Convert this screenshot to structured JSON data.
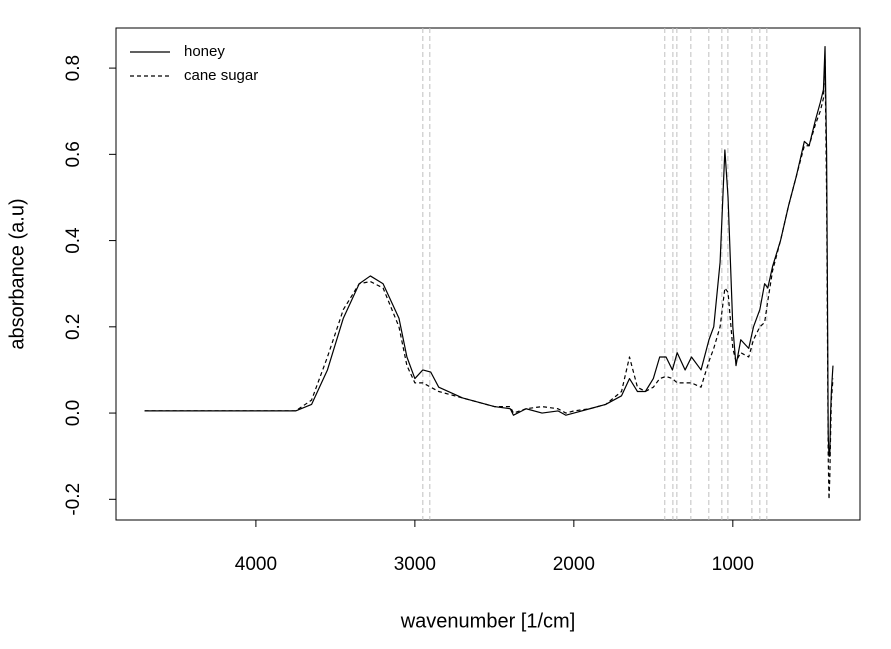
{
  "chart_data": {
    "type": "line",
    "xlabel": "wavenumber [1/cm]",
    "ylabel": "absorbance (a.u)",
    "x": [
      4700,
      3750,
      3650,
      3550,
      3450,
      3350,
      3280,
      3200,
      3100,
      3050,
      3000,
      2950,
      2900,
      2850,
      2700,
      2500,
      2400,
      2380,
      2300,
      2200,
      2100,
      2050,
      2000,
      1900,
      1800,
      1700,
      1650,
      1600,
      1550,
      1500,
      1460,
      1420,
      1380,
      1350,
      1300,
      1260,
      1200,
      1150,
      1120,
      1080,
      1050,
      1030,
      1000,
      980,
      950,
      900,
      870,
      830,
      800,
      780,
      750,
      700,
      650,
      600,
      550,
      520,
      480,
      450,
      430,
      420,
      410,
      405,
      400,
      395,
      390,
      385,
      380,
      370
    ],
    "series": [
      {
        "name": "honey",
        "color": "#000000",
        "linestyle": "solid",
        "values": [
          0.005,
          0.005,
          0.02,
          0.1,
          0.22,
          0.3,
          0.318,
          0.3,
          0.22,
          0.13,
          0.08,
          0.1,
          0.095,
          0.06,
          0.035,
          0.015,
          0.01,
          -0.005,
          0.01,
          0.0,
          0.005,
          -0.005,
          0.0,
          0.01,
          0.02,
          0.04,
          0.08,
          0.05,
          0.05,
          0.08,
          0.13,
          0.13,
          0.1,
          0.14,
          0.1,
          0.13,
          0.1,
          0.17,
          0.2,
          0.35,
          0.61,
          0.5,
          0.2,
          0.11,
          0.17,
          0.15,
          0.2,
          0.24,
          0.3,
          0.29,
          0.34,
          0.4,
          0.48,
          0.55,
          0.63,
          0.62,
          0.68,
          0.72,
          0.75,
          0.85,
          0.6,
          0.3,
          -0.05,
          -0.1,
          -0.1,
          0.0,
          0.05,
          0.11
        ]
      },
      {
        "name": "cane sugar",
        "color": "#000000",
        "linestyle": "dashed",
        "values": [
          0.005,
          0.005,
          0.03,
          0.13,
          0.24,
          0.3,
          0.305,
          0.29,
          0.2,
          0.11,
          0.07,
          0.07,
          0.06,
          0.05,
          0.035,
          0.015,
          0.015,
          0.0,
          0.01,
          0.015,
          0.01,
          0.0,
          0.005,
          0.01,
          0.02,
          0.05,
          0.13,
          0.06,
          0.05,
          0.06,
          0.08,
          0.085,
          0.08,
          0.07,
          0.07,
          0.07,
          0.06,
          0.12,
          0.15,
          0.2,
          0.29,
          0.28,
          0.15,
          0.12,
          0.14,
          0.13,
          0.17,
          0.2,
          0.21,
          0.26,
          0.33,
          0.4,
          0.48,
          0.55,
          0.62,
          0.62,
          0.67,
          0.7,
          0.73,
          0.82,
          0.5,
          0.2,
          -0.1,
          -0.2,
          -0.15,
          -0.05,
          0.03,
          0.08
        ]
      }
    ],
    "vlines": [
      2950,
      2906,
      1428,
      1377,
      1352,
      1264,
      1151,
      1069,
      1031,
      880,
      830,
      786
    ],
    "vline_color": "#c0c0c0",
    "xlim": [
      4880,
      200
    ],
    "ylim": [
      -0.248,
      0.893
    ],
    "xticks": [
      4000,
      3000,
      2000,
      1000
    ],
    "yticks": [
      -0.2,
      {
        "value": 0,
        "label": "0.0"
      },
      0.2,
      0.4,
      0.6,
      0.8
    ],
    "legend": "top-left"
  }
}
